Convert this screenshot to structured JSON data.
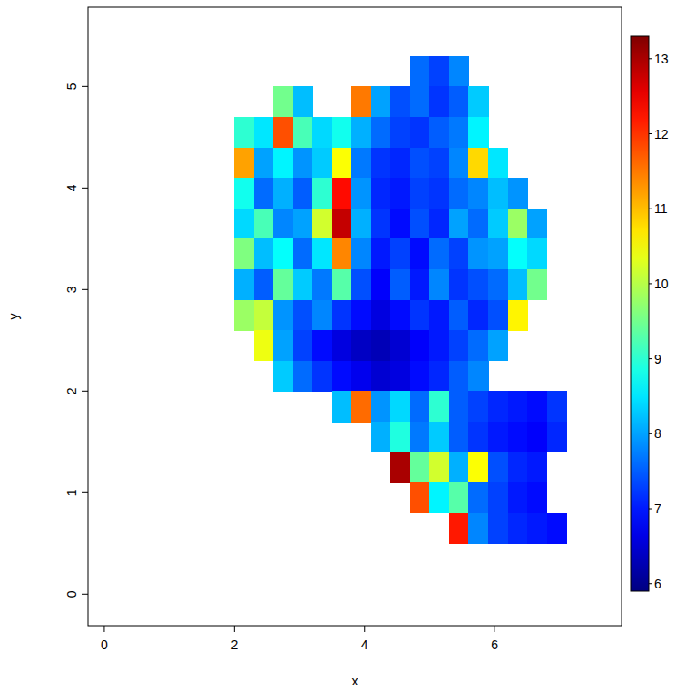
{
  "chart_data": {
    "type": "heatmap",
    "x_label": "x",
    "y_label": "y",
    "xlim": [
      -0.25,
      7.95
    ],
    "ylim": [
      -0.31,
      5.78
    ],
    "xticks": [
      0,
      2,
      4,
      6
    ],
    "yticks": [
      0,
      1,
      2,
      3,
      4,
      5
    ],
    "x": [
      2.15,
      2.45,
      2.75,
      3.05,
      3.35,
      3.65,
      3.95,
      4.25,
      4.55,
      4.85,
      5.15,
      5.45,
      5.75,
      6.05,
      6.35,
      6.65,
      6.95
    ],
    "y": [
      5.15,
      4.85,
      4.55,
      4.25,
      3.95,
      3.65,
      3.35,
      3.05,
      2.75,
      2.45,
      2.15,
      1.85,
      1.55,
      1.25,
      0.95,
      0.65
    ],
    "cells": [
      [
        null,
        null,
        null,
        null,
        null,
        null,
        null,
        null,
        null,
        7.6,
        7.3,
        7.8,
        null,
        null,
        null,
        null,
        null
      ],
      [
        null,
        null,
        9.5,
        8.2,
        null,
        null,
        11.5,
        8.0,
        7.4,
        7.6,
        7.2,
        7.5,
        8.3,
        null,
        null,
        null,
        null
      ],
      [
        9.0,
        8.5,
        11.8,
        9.2,
        8.4,
        8.8,
        8.1,
        7.6,
        7.3,
        7.2,
        7.5,
        7.7,
        8.6,
        null,
        null,
        null,
        null
      ],
      [
        11.2,
        8.0,
        8.6,
        7.9,
        8.3,
        10.5,
        7.7,
        7.2,
        7.1,
        7.4,
        7.3,
        7.8,
        10.8,
        8.5,
        null,
        null,
        null
      ],
      [
        8.8,
        7.6,
        8.1,
        7.5,
        9.0,
        12.3,
        7.9,
        7.1,
        7.0,
        7.3,
        7.2,
        7.6,
        7.8,
        8.2,
        7.9,
        null,
        null
      ],
      [
        8.4,
        9.2,
        7.8,
        8.0,
        10.2,
        12.8,
        8.1,
        7.2,
        6.9,
        7.4,
        7.1,
        8.0,
        7.6,
        8.3,
        9.8,
        8.0,
        null
      ],
      [
        9.6,
        8.2,
        8.7,
        7.6,
        8.5,
        11.4,
        7.8,
        7.0,
        7.3,
        6.9,
        7.6,
        7.3,
        7.9,
        8.0,
        8.7,
        8.4,
        null
      ],
      [
        8.1,
        7.5,
        9.4,
        8.3,
        7.7,
        9.3,
        7.4,
        6.8,
        7.5,
        7.0,
        7.8,
        7.2,
        7.4,
        7.6,
        8.2,
        9.5,
        null
      ],
      [
        9.8,
        10.1,
        7.9,
        7.4,
        7.8,
        7.2,
        6.9,
        6.6,
        6.9,
        7.2,
        7.0,
        7.5,
        7.1,
        7.4,
        10.6,
        null,
        null
      ],
      [
        null,
        10.4,
        8.0,
        7.3,
        6.9,
        6.6,
        6.4,
        6.3,
        6.5,
        6.8,
        7.0,
        7.3,
        7.6,
        8.0,
        null,
        null,
        null
      ],
      [
        null,
        null,
        8.3,
        7.6,
        7.2,
        6.9,
        6.7,
        6.5,
        6.6,
        6.9,
        7.1,
        7.5,
        7.8,
        null,
        null,
        null,
        null
      ],
      [
        null,
        null,
        null,
        null,
        null,
        8.2,
        11.6,
        7.9,
        8.4,
        7.6,
        9.0,
        7.5,
        7.3,
        7.1,
        7.0,
        6.9,
        7.2
      ],
      [
        null,
        null,
        null,
        null,
        null,
        null,
        null,
        8.1,
        8.9,
        7.7,
        8.3,
        7.5,
        7.2,
        7.0,
        6.9,
        6.8,
        7.1
      ],
      [
        null,
        null,
        null,
        null,
        null,
        null,
        null,
        null,
        13.0,
        9.4,
        10.2,
        8.1,
        10.5,
        7.4,
        7.1,
        7.0,
        null
      ],
      [
        null,
        null,
        null,
        null,
        null,
        null,
        null,
        null,
        null,
        11.8,
        8.6,
        9.3,
        7.6,
        7.3,
        7.0,
        6.9,
        null
      ],
      [
        null,
        null,
        null,
        null,
        null,
        null,
        null,
        null,
        null,
        null,
        null,
        12.2,
        7.8,
        7.3,
        7.1,
        7.0,
        6.9
      ]
    ],
    "colorbar_range": [
      5.9,
      13.3
    ],
    "colorbar_ticks": [
      6,
      7,
      8,
      9,
      10,
      11,
      12,
      13
    ]
  }
}
